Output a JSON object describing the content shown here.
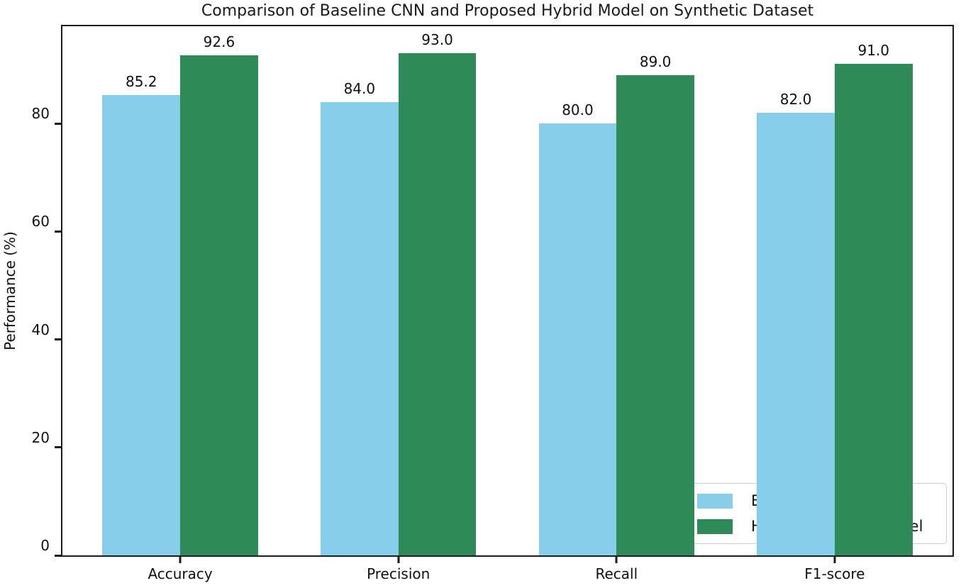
{
  "chart_data": {
    "type": "bar",
    "title": "Comparison of Baseline CNN and Proposed Hybrid Model on Synthetic Dataset",
    "categories": [
      "Accuracy",
      "Precision",
      "Recall",
      "F1-score"
    ],
    "series": [
      {
        "name": "Baseline CNN",
        "color": "#87CEEB",
        "values": [
          85.2,
          84.0,
          80.0,
          82.0
        ]
      },
      {
        "name": "Hybrid Proposed Model",
        "color": "#2E8B57",
        "values": [
          92.6,
          93.0,
          89.0,
          91.0
        ]
      }
    ],
    "xlabel": "",
    "ylabel": "Performance (%)",
    "ylim": [
      0,
      98
    ],
    "yticks": [
      0,
      20,
      40,
      60,
      80
    ],
    "grid": false,
    "bar_value_labels": true,
    "value_label_decimals": 1,
    "legend": {
      "position": "lower right",
      "entries": [
        "Baseline CNN",
        "Hybrid Proposed Model"
      ]
    }
  }
}
